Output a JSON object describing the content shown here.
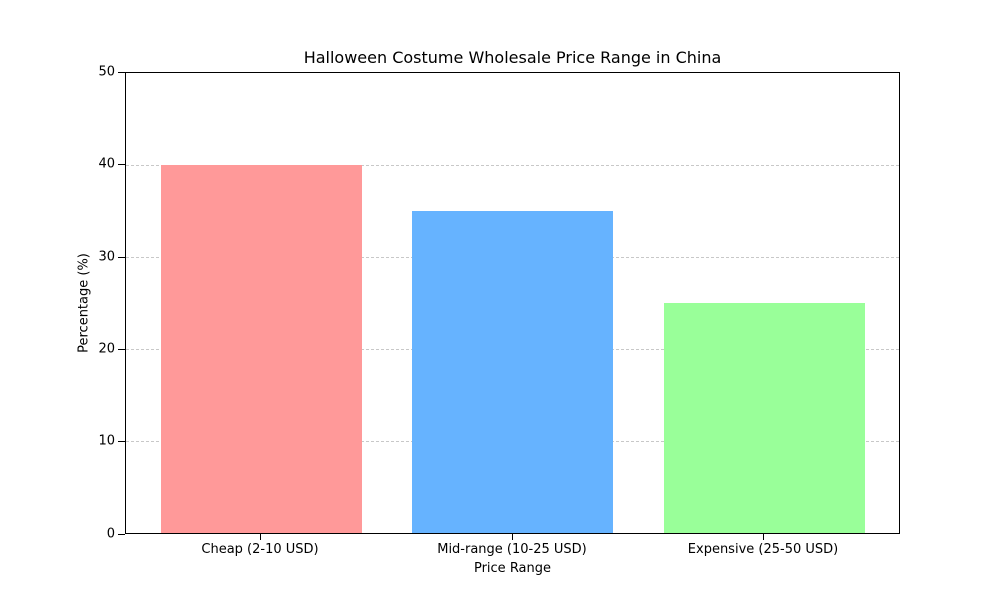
{
  "chart_data": {
    "type": "bar",
    "title": "Halloween Costume Wholesale Price Range in China",
    "categories": [
      "Cheap (2-10 USD)",
      "Mid-range (10-25 USD)",
      "Expensive (25-50 USD)"
    ],
    "values": [
      40,
      35,
      25
    ],
    "colors": [
      "#ff9999",
      "#66b3ff",
      "#99ff99"
    ],
    "xlabel": "Price Range",
    "ylabel": "Percentage (%)",
    "ylim": [
      0,
      50
    ],
    "yticks": [
      "0",
      "10",
      "20",
      "30",
      "40",
      "50"
    ],
    "grid": "y-dashed",
    "legend": null
  }
}
